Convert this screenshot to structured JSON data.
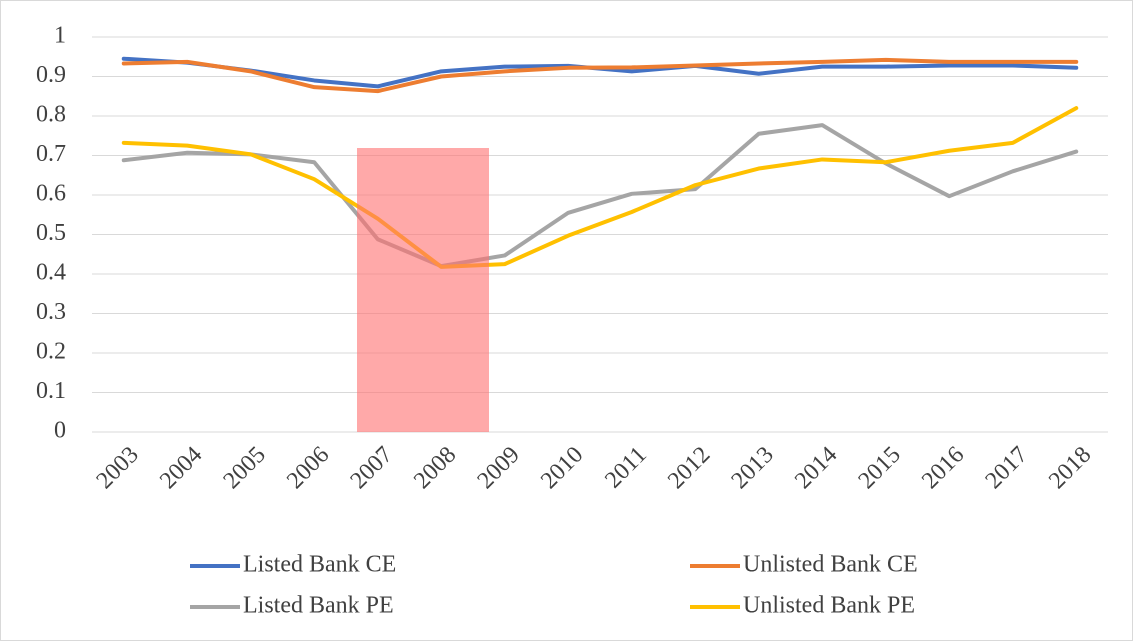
{
  "chart_data": {
    "type": "line",
    "categories": [
      "2003",
      "2004",
      "2005",
      "2006",
      "2007",
      "2008",
      "2009",
      "2010",
      "2011",
      "2012",
      "2013",
      "2014",
      "2015",
      "2016",
      "2017",
      "2018"
    ],
    "series": [
      {
        "name": "Listed Bank CE",
        "color": "#4472c4",
        "values": [
          0.945,
          0.935,
          0.915,
          0.89,
          0.875,
          0.913,
          0.925,
          0.927,
          0.913,
          0.927,
          0.907,
          0.925,
          0.925,
          0.928,
          0.928,
          0.922
        ]
      },
      {
        "name": "Unlisted Bank CE",
        "color": "#ed7d31",
        "values": [
          0.933,
          0.937,
          0.913,
          0.873,
          0.863,
          0.9,
          0.913,
          0.922,
          0.923,
          0.928,
          0.933,
          0.937,
          0.942,
          0.937,
          0.937,
          0.937
        ]
      },
      {
        "name": "Listed Bank PE",
        "color": "#a5a5a5",
        "values": [
          0.688,
          0.707,
          0.703,
          0.683,
          0.488,
          0.42,
          0.447,
          0.555,
          0.603,
          0.615,
          0.755,
          0.777,
          0.68,
          0.597,
          0.66,
          0.71
        ]
      },
      {
        "name": "Unlisted Bank PE",
        "color": "#ffc000",
        "values": [
          0.732,
          0.725,
          0.703,
          0.64,
          0.54,
          0.418,
          0.425,
          0.497,
          0.557,
          0.625,
          0.667,
          0.69,
          0.683,
          0.712,
          0.732,
          0.82
        ]
      }
    ],
    "ylim": [
      0,
      1
    ],
    "yticks": [
      0,
      0.1,
      0.2,
      0.3,
      0.4,
      0.5,
      0.6,
      0.7,
      0.8,
      0.9,
      1
    ],
    "grid": true,
    "legend": "bottom"
  }
}
